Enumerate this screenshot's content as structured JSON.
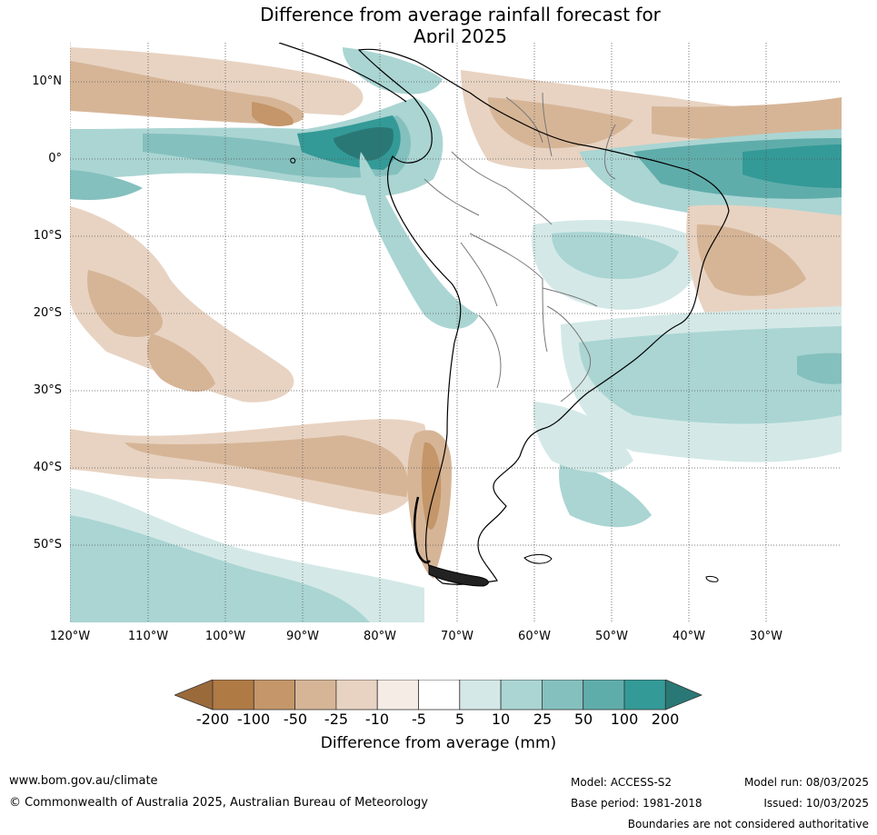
{
  "title_line1": "Difference from average rainfall forecast for",
  "title_line2": "April 2025",
  "lat_labels": [
    "10°N",
    "0°",
    "10°S",
    "20°S",
    "30°S",
    "40°S",
    "50°S"
  ],
  "lon_labels": [
    "120°W",
    "110°W",
    "100°W",
    "90°W",
    "80°W",
    "70°W",
    "60°W",
    "50°W",
    "40°W",
    "30°W"
  ],
  "colorbar": {
    "ticks": [
      "-200",
      "-100",
      "-50",
      "-25",
      "-10",
      "-5",
      "5",
      "10",
      "25",
      "50",
      "100",
      "200"
    ],
    "label": "Difference from average (mm)",
    "colors": [
      "#9b6a3a",
      "#b07a45",
      "#c49669",
      "#d6b597",
      "#e8d3c2",
      "#f5ece6",
      "#ffffff",
      "#d4e9e7",
      "#aad5d3",
      "#84c0be",
      "#5fadab",
      "#339a97",
      "#2a7876"
    ]
  },
  "footer": {
    "website": "www.bom.gov.au/climate",
    "copyright": "© Commonwealth of Australia 2025, Australian Bureau of Meteorology",
    "model": "Model: ACCESS-S2",
    "base_period": "Base period: 1981-2018",
    "model_run": "Model run: 08/03/2025",
    "issued": "Issued: 10/03/2025",
    "disclaimer": "Boundaries are not considered authoritative"
  }
}
